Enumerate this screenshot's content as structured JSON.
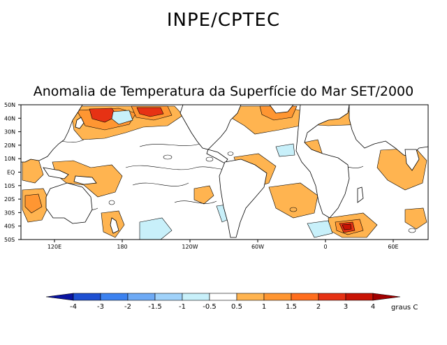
{
  "header": {
    "agency": "INPE/CPTEC",
    "title": "Anomalia de Temperatura da Superfície do Mar SET/2000"
  },
  "map": {
    "lat_labels": [
      "50N",
      "40N",
      "30N",
      "20N",
      "10N",
      "EQ",
      "10S",
      "20S",
      "30S",
      "40S",
      "50S"
    ],
    "lon_labels": [
      "120E",
      "180",
      "120W",
      "60W",
      "0",
      "60E"
    ]
  },
  "colorbar": {
    "unit": "graus C",
    "tick_labels": [
      "-4",
      "-3",
      "-2",
      "-1.5",
      "-1",
      "-0.5",
      "0.5",
      "1",
      "1.5",
      "2",
      "3",
      "4"
    ],
    "colors": [
      "#0a14a0",
      "#1e50d2",
      "#3c82f0",
      "#6eaaf5",
      "#a0d2fa",
      "#c8f0fa",
      "#ffffff",
      "#ffb450",
      "#ff9632",
      "#ff6e1e",
      "#e63214",
      "#c81405",
      "#a00000"
    ]
  }
}
